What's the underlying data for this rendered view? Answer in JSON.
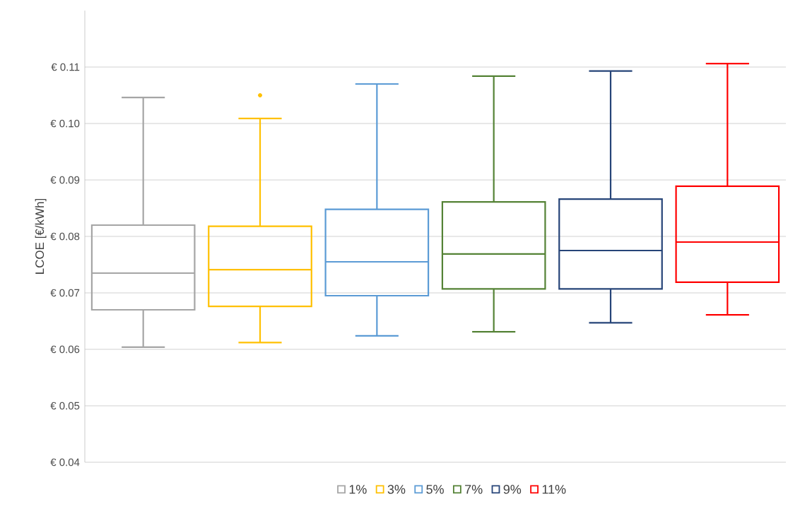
{
  "chart_data": {
    "type": "box",
    "ylabel": "LCOE [€/kWh]",
    "categories": [
      null
    ],
    "series": [
      {
        "name": "1%",
        "color": "#a5a5a5",
        "boxes": [
          {
            "low": 0.0604,
            "q1": 0.067,
            "median": 0.0735,
            "q3": 0.082,
            "high": 0.1046
          }
        ]
      },
      {
        "name": "3%",
        "color": "#ffc000",
        "boxes": [
          {
            "low": 0.0612,
            "q1": 0.0676,
            "median": 0.0741,
            "q3": 0.0818,
            "high": 0.1009,
            "outliers": [
              0.105
            ]
          }
        ]
      },
      {
        "name": "5%",
        "color": "#5b9bd5",
        "boxes": [
          {
            "low": 0.0624,
            "q1": 0.0695,
            "median": 0.0755,
            "q3": 0.0848,
            "high": 0.107
          }
        ]
      },
      {
        "name": "7%",
        "color": "#548235",
        "boxes": [
          {
            "low": 0.0631,
            "q1": 0.0707,
            "median": 0.0769,
            "q3": 0.0861,
            "high": 0.1084
          }
        ]
      },
      {
        "name": "9%",
        "color": "#264478",
        "boxes": [
          {
            "low": 0.0647,
            "q1": 0.0707,
            "median": 0.0775,
            "q3": 0.0866,
            "high": 0.1093
          }
        ]
      },
      {
        "name": "11%",
        "color": "#ff0000",
        "boxes": [
          {
            "low": 0.0661,
            "q1": 0.0719,
            "median": 0.079,
            "q3": 0.0889,
            "high": 0.1106
          }
        ]
      }
    ],
    "ylim": [
      0.04,
      0.12
    ],
    "yticks": [
      {
        "value": 0.04,
        "label": "€ 0.04"
      },
      {
        "value": 0.05,
        "label": "€ 0.05"
      },
      {
        "value": 0.06,
        "label": "€ 0.06"
      },
      {
        "value": 0.07,
        "label": "€ 0.07"
      },
      {
        "value": 0.08,
        "label": "€ 0.08"
      },
      {
        "value": 0.09,
        "label": "€ 0.09"
      },
      {
        "value": 0.1,
        "label": "€ 0.10"
      },
      {
        "value": 0.11,
        "label": "€ 0.11"
      }
    ],
    "grid": "y",
    "legend": "bottom"
  }
}
